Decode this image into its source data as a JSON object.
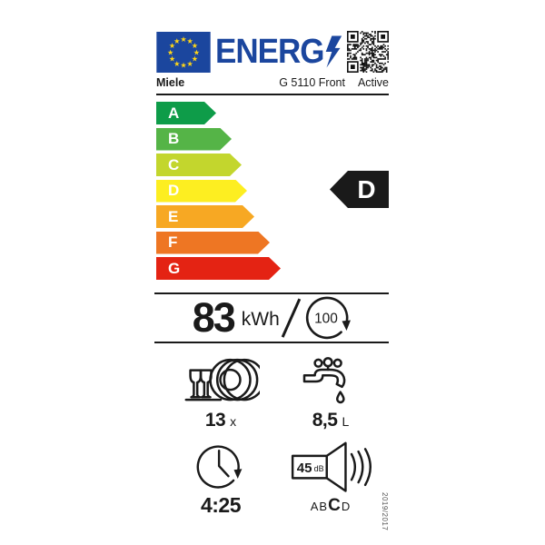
{
  "header": {
    "logo": "ENERG",
    "brand": "Miele",
    "model": "G 5110 Front",
    "variant": "Active"
  },
  "efficiency_scale": {
    "classes": [
      {
        "label": "A",
        "color": "#0e9c49",
        "style": "width:66px;background:#0e9c49"
      },
      {
        "label": "B",
        "color": "#55b447",
        "style": "width:83px;background:#55b447"
      },
      {
        "label": "C",
        "color": "#c3d62d",
        "style": "width:94px;background:#c3d62d"
      },
      {
        "label": "D",
        "color": "#fdee21",
        "style": "width:100px;background:#fdee21"
      },
      {
        "label": "E",
        "color": "#f7a823",
        "style": "width:108px;background:#f7a823"
      },
      {
        "label": "F",
        "color": "#ee7623",
        "style": "width:125px;background:#ee7623"
      },
      {
        "label": "G",
        "color": "#e42313",
        "style": "width:137px;background:#e42313"
      }
    ],
    "rating_letter": "D"
  },
  "consumption": {
    "value": "83",
    "unit": "kWh",
    "per_cycles": "100"
  },
  "capacity": {
    "value": "13",
    "unit": "x"
  },
  "water": {
    "value": "8,5",
    "unit": "L"
  },
  "duration": {
    "value": "4:25"
  },
  "noise": {
    "value": "45",
    "unit": "dB",
    "scale_prefix": "AB",
    "scale_current": "C",
    "scale_suffix": "D"
  },
  "regulation": "2019/2017",
  "colors": {
    "eu_blue": "#1b469e",
    "star_yellow": "#ffd617",
    "ink": "#1a1a1a"
  }
}
